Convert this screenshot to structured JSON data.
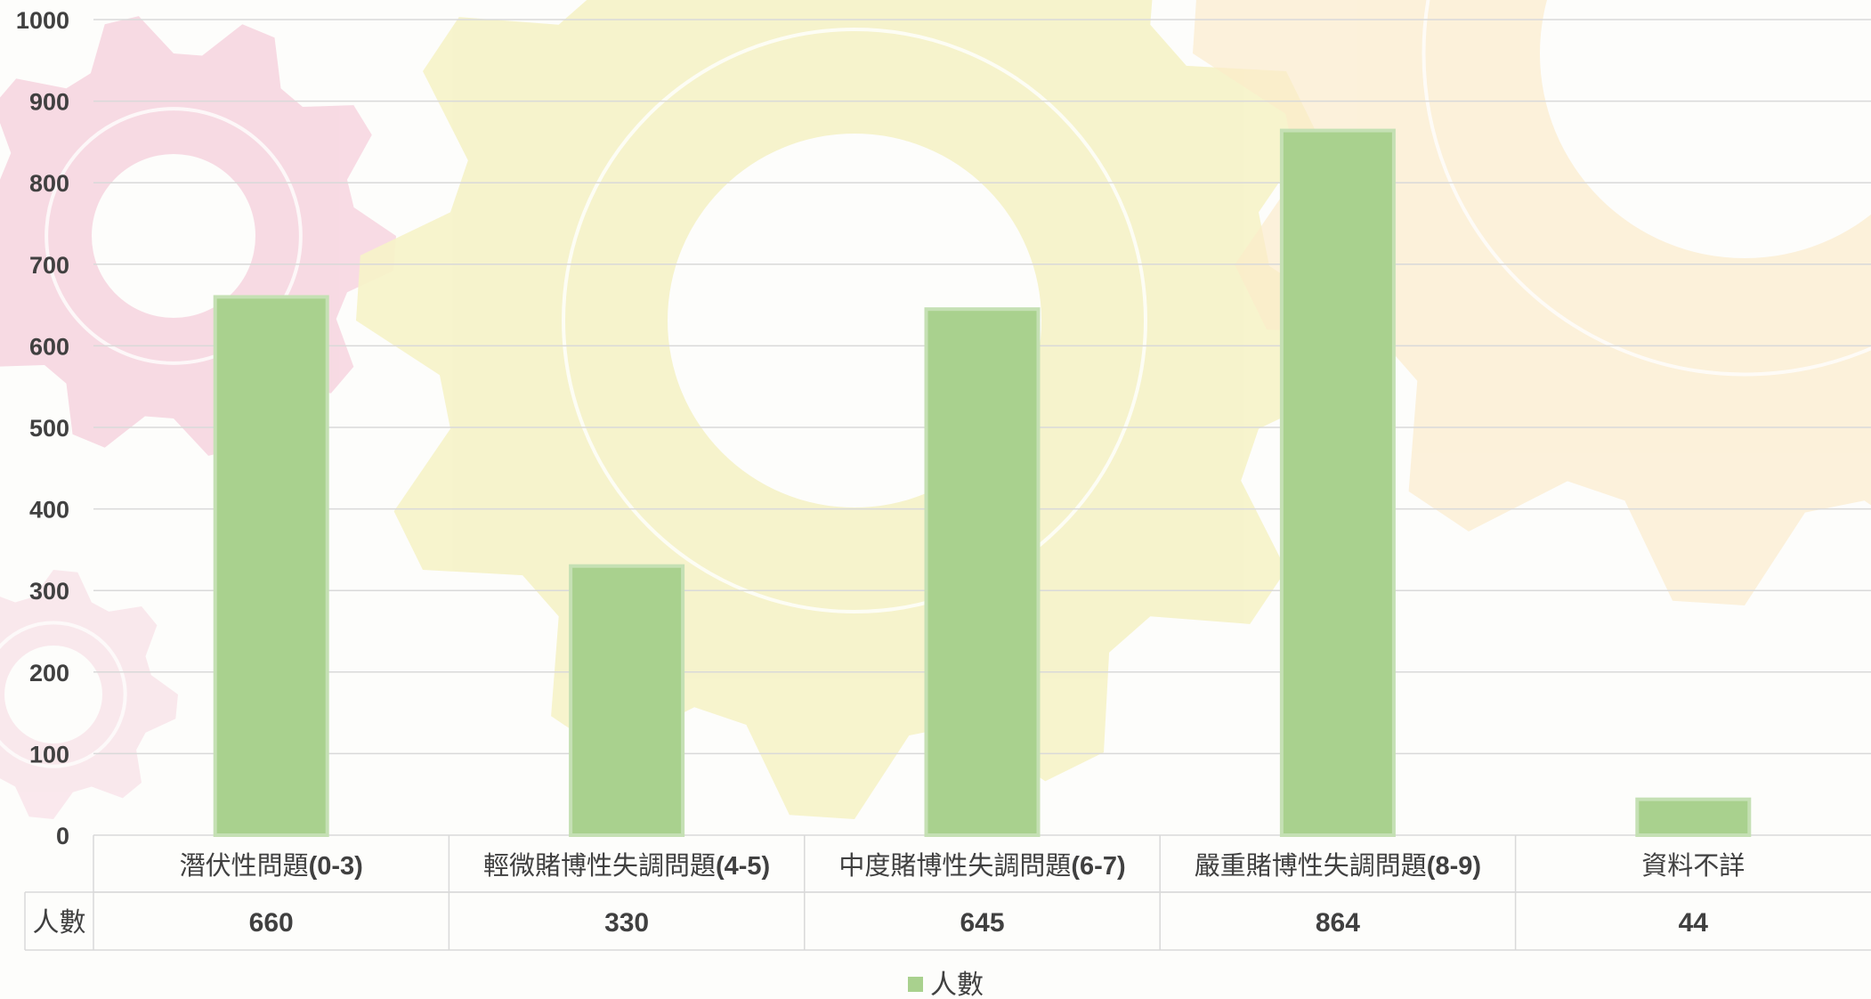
{
  "colors": {
    "bar_fill": "#a9d18e",
    "bar_stroke": "#c5e0b4",
    "gridline": "#d9d9d9",
    "text": "#404040",
    "watermark_pink": "#f6cfdc",
    "watermark_yellow": "#f6f3c8",
    "watermark_orange": "#fcebc9"
  },
  "chart_data": {
    "type": "bar",
    "categories": [
      "潛伏性問題(0-3)",
      "輕微賭博性失調問題(4-5)",
      "中度賭博性失調問題(6-7)",
      "嚴重賭博性失調問題(8-9)",
      "資料不詳"
    ],
    "series": [
      {
        "name": "人數",
        "values": [
          660,
          330,
          645,
          864,
          44
        ]
      }
    ],
    "ylim": [
      0,
      1000
    ],
    "yticks": [
      "0",
      "100",
      "200",
      "300",
      "400",
      "500",
      "600",
      "700",
      "800",
      "900",
      "1000"
    ],
    "grid": true,
    "data_table": true,
    "legend": {
      "position": "bottom",
      "label": "人數"
    }
  }
}
